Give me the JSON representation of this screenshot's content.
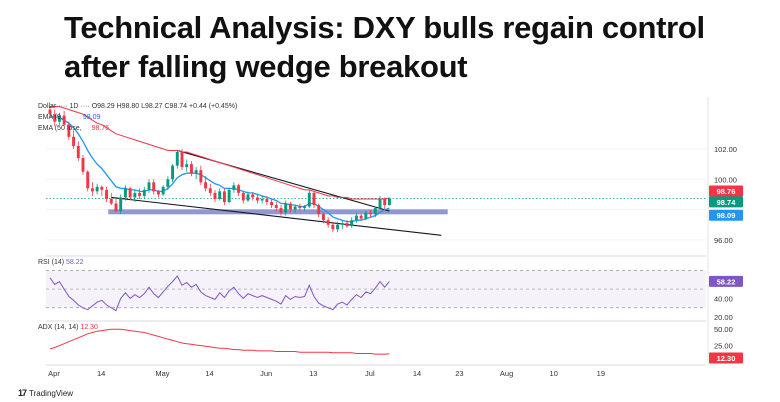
{
  "headline": "Technical Analysis: DXY bulls regain control after falling wedge breakout",
  "legend": {
    "main_prefix": "Dollar",
    "main_mid": "1D",
    "ohlc": "O98.29 H98.80 L98.27 C98.74 +0.44 (+0.45%)",
    "ema9_label": "EMA (9,",
    "ema9_value": "98.09",
    "ema50_label": "EMA (50",
    "ema50_suffix": "lose,",
    "ema50_value": "98.76",
    "rsi_label": "RSI (14)",
    "rsi_value": "58.22",
    "adx_label": "ADX (14, 14)",
    "adx_value": "12.30"
  },
  "price_axis": {
    "ticks": [
      "102.00",
      "100.00",
      "96.00"
    ],
    "badges": {
      "close": "98.74",
      "ema50": "98.76",
      "ema9": "98.09"
    }
  },
  "rsi_axis": {
    "ticks": [
      "40.00",
      "20.00"
    ],
    "badge": "58.22"
  },
  "adx_axis": {
    "ticks": [
      "50.00",
      "25.00"
    ],
    "badge": "12.30"
  },
  "time_axis": [
    "Apr",
    "14",
    "May",
    "14",
    "Jun",
    "13",
    "Jul",
    "14",
    "23",
    "Aug",
    "10",
    "19"
  ],
  "footer": {
    "logo": "17",
    "brand": "TradingView"
  },
  "colors": {
    "up": "#089981",
    "down": "#f23645",
    "ema9": "#2196f3",
    "ema50": "#f23645",
    "support": "#7e86c8",
    "rsi": "#7e57c2",
    "adx": "#f23645",
    "wedge": "#131722"
  },
  "chart_data": {
    "type": "candlestick",
    "title": "",
    "candles": [
      {
        "o": 104.6,
        "h": 104.8,
        "l": 104.1,
        "c": 104.3
      },
      {
        "o": 104.3,
        "h": 104.6,
        "l": 103.5,
        "c": 103.8
      },
      {
        "o": 103.8,
        "h": 104.4,
        "l": 103.6,
        "c": 104.2
      },
      {
        "o": 104.2,
        "h": 104.5,
        "l": 103.5,
        "c": 103.6
      },
      {
        "o": 103.6,
        "h": 103.8,
        "l": 102.6,
        "c": 102.8
      },
      {
        "o": 102.8,
        "h": 103.2,
        "l": 102.0,
        "c": 102.2
      },
      {
        "o": 102.2,
        "h": 102.5,
        "l": 101.2,
        "c": 101.4
      },
      {
        "o": 101.4,
        "h": 101.6,
        "l": 100.3,
        "c": 100.5
      },
      {
        "o": 100.5,
        "h": 100.6,
        "l": 99.2,
        "c": 99.4
      },
      {
        "o": 99.4,
        "h": 99.8,
        "l": 98.9,
        "c": 99.2
      },
      {
        "o": 99.2,
        "h": 99.7,
        "l": 99.0,
        "c": 99.5
      },
      {
        "o": 99.5,
        "h": 99.6,
        "l": 98.9,
        "c": 99.3
      },
      {
        "o": 99.3,
        "h": 99.5,
        "l": 98.5,
        "c": 98.7
      },
      {
        "o": 98.7,
        "h": 99.1,
        "l": 98.3,
        "c": 98.4
      },
      {
        "o": 98.4,
        "h": 98.7,
        "l": 97.8,
        "c": 97.9
      },
      {
        "o": 97.9,
        "h": 99.0,
        "l": 97.7,
        "c": 98.8
      },
      {
        "o": 98.8,
        "h": 99.6,
        "l": 98.6,
        "c": 99.4
      },
      {
        "o": 99.4,
        "h": 99.5,
        "l": 98.6,
        "c": 98.8
      },
      {
        "o": 98.8,
        "h": 99.3,
        "l": 98.5,
        "c": 99.1
      },
      {
        "o": 99.1,
        "h": 99.4,
        "l": 98.7,
        "c": 98.9
      },
      {
        "o": 98.9,
        "h": 99.5,
        "l": 98.7,
        "c": 99.3
      },
      {
        "o": 99.3,
        "h": 100.0,
        "l": 99.1,
        "c": 99.8
      },
      {
        "o": 99.8,
        "h": 100.0,
        "l": 99.0,
        "c": 99.2
      },
      {
        "o": 99.2,
        "h": 99.3,
        "l": 98.8,
        "c": 99.0
      },
      {
        "o": 99.0,
        "h": 99.6,
        "l": 98.9,
        "c": 99.5
      },
      {
        "o": 99.5,
        "h": 100.2,
        "l": 99.3,
        "c": 100.0
      },
      {
        "o": 100.0,
        "h": 101.0,
        "l": 99.8,
        "c": 100.9
      },
      {
        "o": 100.9,
        "h": 101.9,
        "l": 100.7,
        "c": 101.8
      },
      {
        "o": 101.8,
        "h": 102.0,
        "l": 100.6,
        "c": 100.8
      },
      {
        "o": 100.8,
        "h": 101.3,
        "l": 100.5,
        "c": 101.0
      },
      {
        "o": 101.0,
        "h": 101.2,
        "l": 100.2,
        "c": 100.4
      },
      {
        "o": 100.4,
        "h": 100.8,
        "l": 100.0,
        "c": 100.6
      },
      {
        "o": 100.6,
        "h": 100.9,
        "l": 99.6,
        "c": 99.8
      },
      {
        "o": 99.8,
        "h": 100.2,
        "l": 99.2,
        "c": 99.4
      },
      {
        "o": 99.4,
        "h": 99.7,
        "l": 98.9,
        "c": 99.1
      },
      {
        "o": 99.1,
        "h": 99.3,
        "l": 98.5,
        "c": 98.7
      },
      {
        "o": 98.7,
        "h": 99.4,
        "l": 98.6,
        "c": 99.2
      },
      {
        "o": 99.2,
        "h": 99.4,
        "l": 98.3,
        "c": 98.5
      },
      {
        "o": 98.5,
        "h": 99.4,
        "l": 98.4,
        "c": 99.3
      },
      {
        "o": 99.3,
        "h": 99.8,
        "l": 99.1,
        "c": 99.6
      },
      {
        "o": 99.6,
        "h": 99.7,
        "l": 98.9,
        "c": 99.1
      },
      {
        "o": 99.1,
        "h": 99.2,
        "l": 98.4,
        "c": 98.6
      },
      {
        "o": 98.6,
        "h": 99.2,
        "l": 98.5,
        "c": 99.0
      },
      {
        "o": 99.0,
        "h": 99.1,
        "l": 98.6,
        "c": 98.8
      },
      {
        "o": 98.8,
        "h": 99.0,
        "l": 98.4,
        "c": 98.6
      },
      {
        "o": 98.6,
        "h": 98.9,
        "l": 98.4,
        "c": 98.7
      },
      {
        "o": 98.7,
        "h": 98.9,
        "l": 98.3,
        "c": 98.5
      },
      {
        "o": 98.5,
        "h": 98.7,
        "l": 98.1,
        "c": 98.3
      },
      {
        "o": 98.3,
        "h": 98.5,
        "l": 97.9,
        "c": 98.1
      },
      {
        "o": 98.1,
        "h": 98.3,
        "l": 97.6,
        "c": 97.8
      },
      {
        "o": 97.8,
        "h": 98.6,
        "l": 97.6,
        "c": 98.4
      },
      {
        "o": 98.4,
        "h": 98.5,
        "l": 97.8,
        "c": 98.0
      },
      {
        "o": 98.0,
        "h": 98.3,
        "l": 97.8,
        "c": 98.2
      },
      {
        "o": 98.2,
        "h": 98.4,
        "l": 97.9,
        "c": 98.1
      },
      {
        "o": 98.1,
        "h": 98.3,
        "l": 97.9,
        "c": 98.2
      },
      {
        "o": 98.2,
        "h": 99.3,
        "l": 98.1,
        "c": 99.1
      },
      {
        "o": 99.1,
        "h": 99.2,
        "l": 98.1,
        "c": 98.3
      },
      {
        "o": 98.3,
        "h": 98.4,
        "l": 97.5,
        "c": 97.7
      },
      {
        "o": 97.7,
        "h": 97.8,
        "l": 97.1,
        "c": 97.3
      },
      {
        "o": 97.3,
        "h": 97.5,
        "l": 96.8,
        "c": 97.0
      },
      {
        "o": 97.0,
        "h": 97.2,
        "l": 96.5,
        "c": 96.7
      },
      {
        "o": 96.7,
        "h": 97.2,
        "l": 96.5,
        "c": 97.0
      },
      {
        "o": 97.0,
        "h": 97.3,
        "l": 96.7,
        "c": 97.1
      },
      {
        "o": 97.1,
        "h": 97.3,
        "l": 96.8,
        "c": 96.9
      },
      {
        "o": 96.9,
        "h": 97.5,
        "l": 96.8,
        "c": 97.3
      },
      {
        "o": 97.3,
        "h": 97.8,
        "l": 97.1,
        "c": 97.6
      },
      {
        "o": 97.6,
        "h": 97.7,
        "l": 97.3,
        "c": 97.4
      },
      {
        "o": 97.4,
        "h": 97.9,
        "l": 97.3,
        "c": 97.8
      },
      {
        "o": 97.8,
        "h": 98.0,
        "l": 97.5,
        "c": 97.7
      },
      {
        "o": 97.7,
        "h": 98.2,
        "l": 97.5,
        "c": 98.1
      },
      {
        "o": 98.1,
        "h": 98.9,
        "l": 98.0,
        "c": 98.7
      },
      {
        "o": 98.7,
        "h": 98.8,
        "l": 98.0,
        "c": 98.3
      },
      {
        "o": 98.29,
        "h": 98.8,
        "l": 98.27,
        "c": 98.74
      }
    ],
    "ema9": [
      104.2,
      104.1,
      104.1,
      103.9,
      103.7,
      103.4,
      103.0,
      102.5,
      101.9,
      101.4,
      101.0,
      100.7,
      100.3,
      99.9,
      99.5,
      99.4,
      99.4,
      99.3,
      99.3,
      99.2,
      99.2,
      99.3,
      99.3,
      99.2,
      99.2,
      99.4,
      99.7,
      100.1,
      100.3,
      100.4,
      100.4,
      100.4,
      100.3,
      100.1,
      99.9,
      99.7,
      99.6,
      99.4,
      99.4,
      99.4,
      99.3,
      99.2,
      99.1,
      99.1,
      99.0,
      98.9,
      98.8,
      98.7,
      98.6,
      98.4,
      98.4,
      98.3,
      98.3,
      98.2,
      98.2,
      98.4,
      98.4,
      98.2,
      98.0,
      97.8,
      97.5,
      97.4,
      97.3,
      97.2,
      97.2,
      97.3,
      97.3,
      97.4,
      97.5,
      97.6,
      97.8,
      98.0,
      98.09
    ],
    "ema50": [
      104.8,
      104.8,
      104.8,
      104.7,
      104.6,
      104.5,
      104.4,
      104.3,
      104.1,
      103.9,
      103.7,
      103.6,
      103.4,
      103.2,
      103.0,
      102.9,
      102.8,
      102.7,
      102.6,
      102.5,
      102.4,
      102.3,
      102.2,
      102.1,
      102.0,
      101.9,
      101.9,
      101.9,
      101.8,
      101.8,
      101.7,
      101.6,
      101.5,
      101.4,
      101.3,
      101.2,
      101.1,
      101.0,
      100.9,
      100.8,
      100.7,
      100.6,
      100.5,
      100.4,
      100.3,
      100.2,
      100.1,
      100.0,
      99.9,
      99.8,
      99.7,
      99.6,
      99.5,
      99.4,
      99.3,
      99.3,
      99.2,
      99.1,
      99.0,
      98.9,
      98.9,
      98.8,
      98.8,
      98.8,
      98.7,
      98.7,
      98.7,
      98.7,
      98.7,
      98.7,
      98.7,
      98.7,
      98.76
    ],
    "support_level": 97.85,
    "wedge_upper": [
      {
        "x": 27,
        "y": 101.9
      },
      {
        "x": 72,
        "y": 97.9
      }
    ],
    "wedge_lower": [
      {
        "x": 13,
        "y": 98.8
      },
      {
        "x": 83,
        "y": 96.3
      }
    ],
    "rsi": [
      62,
      55,
      58,
      50,
      42,
      38,
      33,
      30,
      28,
      32,
      36,
      38,
      33,
      30,
      27,
      40,
      46,
      40,
      44,
      41,
      45,
      52,
      45,
      41,
      47,
      53,
      58,
      64,
      54,
      57,
      52,
      55,
      47,
      43,
      41,
      39,
      46,
      41,
      48,
      52,
      45,
      40,
      45,
      43,
      41,
      43,
      41,
      39,
      37,
      34,
      43,
      39,
      42,
      41,
      42,
      54,
      42,
      35,
      32,
      30,
      28,
      34,
      36,
      33,
      39,
      44,
      41,
      47,
      45,
      51,
      58,
      52,
      58.22
    ],
    "rsi_levels": [
      70,
      50,
      30
    ],
    "adx": [
      20,
      22,
      25,
      28,
      31,
      34,
      37,
      40,
      43,
      45,
      47,
      48,
      49,
      50,
      50,
      50,
      49,
      48,
      47,
      46,
      45,
      43,
      41,
      39,
      37,
      35,
      33,
      31,
      29,
      28,
      27,
      26,
      25,
      24,
      23,
      22,
      21,
      21,
      20,
      19,
      19,
      18,
      18,
      18,
      17,
      17,
      17,
      17,
      16,
      16,
      16,
      16,
      16,
      15,
      15,
      15,
      15,
      15,
      15,
      15,
      14,
      14,
      14,
      14,
      14,
      13,
      13,
      13,
      13,
      12,
      12,
      12,
      12.3
    ],
    "price_ylim": [
      95.2,
      104.9
    ],
    "rsi_ylim": [
      18,
      80
    ],
    "adx_ylim": [
      0,
      58
    ]
  }
}
